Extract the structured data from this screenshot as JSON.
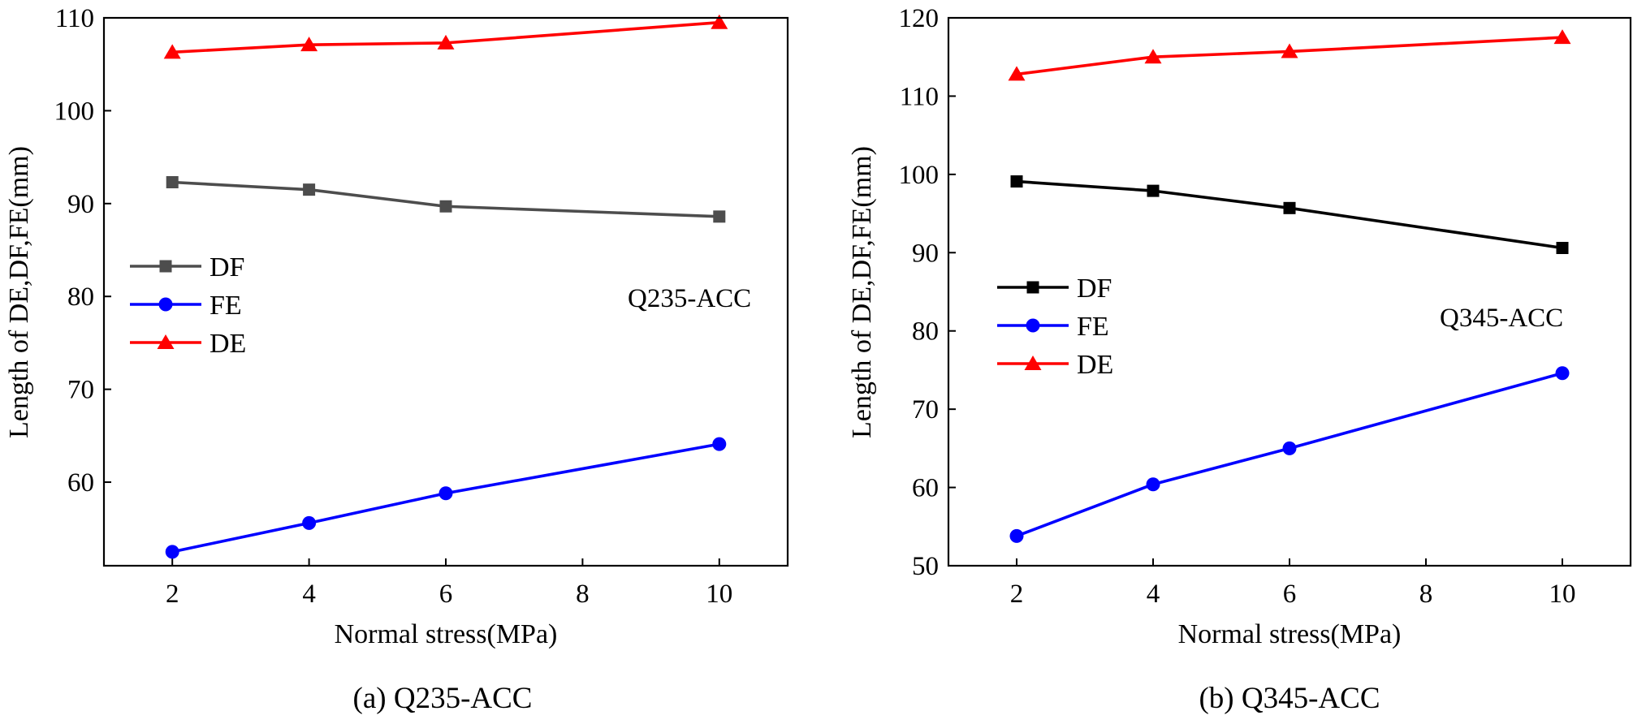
{
  "chart_data": [
    {
      "type": "line",
      "caption": "(a) Q235-ACC",
      "annotation": "Q235-ACC",
      "xlabel": "Normal stress(MPa)",
      "ylabel": "Length of DE,DF,FE(mm)",
      "x": [
        2,
        4,
        6,
        10
      ],
      "xlim": [
        1,
        11
      ],
      "xticks": [
        2,
        4,
        6,
        8,
        10
      ],
      "ylim": [
        51,
        110
      ],
      "yticks": [
        60,
        70,
        80,
        90,
        100,
        110
      ],
      "legend_position": "middle-left",
      "series": [
        {
          "name": "DF",
          "marker": "square",
          "color": "#4d4d4d",
          "values": [
            92.3,
            91.5,
            89.7,
            88.6
          ]
        },
        {
          "name": "FE",
          "marker": "circle",
          "color": "#0000ff",
          "values": [
            52.5,
            55.6,
            58.8,
            64.1
          ]
        },
        {
          "name": "DE",
          "marker": "triangle",
          "color": "#ff0000",
          "values": [
            106.3,
            107.1,
            107.3,
            109.5
          ]
        }
      ]
    },
    {
      "type": "line",
      "caption": "(b) Q345-ACC",
      "annotation": "Q345-ACC",
      "xlabel": "Normal stress(MPa)",
      "ylabel": "Length of DE,DF,FE(mm)",
      "x": [
        2,
        4,
        6,
        10
      ],
      "xlim": [
        1,
        11
      ],
      "xticks": [
        2,
        4,
        6,
        8,
        10
      ],
      "ylim": [
        50,
        120
      ],
      "yticks": [
        50,
        60,
        70,
        80,
        90,
        100,
        110,
        120
      ],
      "legend_position": "middle-left",
      "series": [
        {
          "name": "DF",
          "marker": "square",
          "color": "#000000",
          "values": [
            99.1,
            97.9,
            95.7,
            90.6
          ]
        },
        {
          "name": "FE",
          "marker": "circle",
          "color": "#0000ff",
          "values": [
            53.8,
            60.4,
            65.0,
            74.6
          ]
        },
        {
          "name": "DE",
          "marker": "triangle",
          "color": "#ff0000",
          "values": [
            112.8,
            115.0,
            115.7,
            117.5
          ]
        }
      ]
    }
  ]
}
